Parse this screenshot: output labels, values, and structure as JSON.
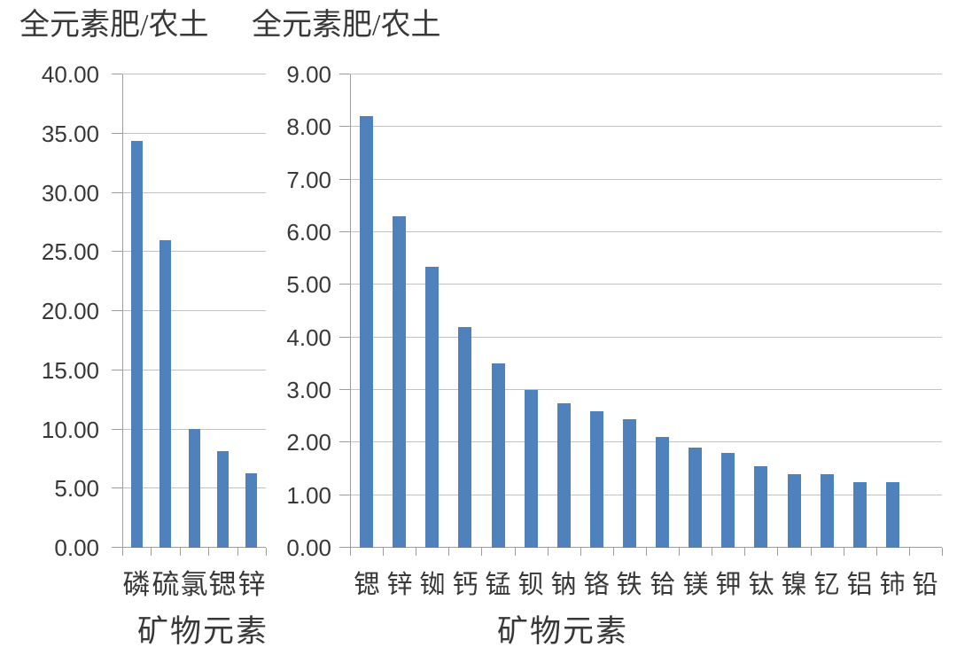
{
  "colors": {
    "bar": "#4f81bd",
    "gridline": "#c3c3c3",
    "axis": "#9d9d9d",
    "text": "#383838"
  },
  "chart_data": [
    {
      "type": "bar",
      "title": "全元素肥/农土",
      "xlabel": "矿物元素",
      "ylabel": "",
      "categories": [
        "磷",
        "硫",
        "氯",
        "锶",
        "锌"
      ],
      "values": [
        34.4,
        26.0,
        10.0,
        8.2,
        6.3
      ],
      "ylim": [
        0,
        40
      ],
      "ytick_step": 5,
      "ytick_labels": [
        "0.00",
        "5.00",
        "10.00",
        "15.00",
        "20.00",
        "25.00",
        "30.00",
        "35.00",
        "40.00"
      ],
      "grid": true,
      "legend": false,
      "bar_color": "#4f81bd"
    },
    {
      "type": "bar",
      "title": "全元素肥/农土",
      "xlabel": "矿物元素",
      "ylabel": "",
      "categories": [
        "锶",
        "锌",
        "铷",
        "钙",
        "锰",
        "钡",
        "钠",
        "铬",
        "铁",
        "铪",
        "镁",
        "钾",
        "钛",
        "镍",
        "钇",
        "铝",
        "铈",
        "铅"
      ],
      "values": [
        8.2,
        6.3,
        5.35,
        4.2,
        3.5,
        3.0,
        2.75,
        2.6,
        2.45,
        2.1,
        1.9,
        1.8,
        1.55,
        1.4,
        1.4,
        1.25,
        1.25,
        0
      ],
      "ylim": [
        0,
        9
      ],
      "ytick_step": 1,
      "ytick_labels": [
        "0.00",
        "1.00",
        "2.00",
        "3.00",
        "4.00",
        "5.00",
        "6.00",
        "7.00",
        "8.00",
        "9.00"
      ],
      "grid": true,
      "legend": false,
      "bar_color": "#4f81bd"
    }
  ]
}
